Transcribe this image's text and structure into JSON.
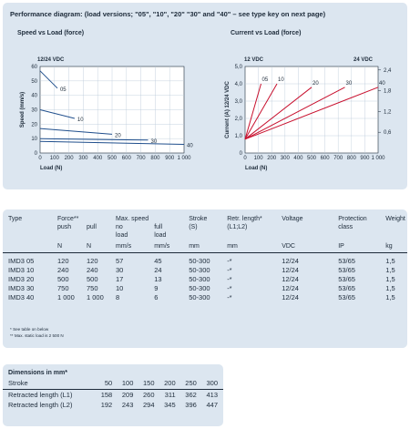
{
  "performance": {
    "heading": "Performance diagram: (load versions; \"05\", \"10\", \"20\" \"30\" and \"40\" – see type key on next page)"
  },
  "chart_data": [
    {
      "type": "line",
      "title": "Speed vs Load (force)",
      "subtitle": "12/24 VDC",
      "xlabel": "Load (N)",
      "ylabel": "Speed (mm/s)",
      "xlim": [
        0,
        1000
      ],
      "ylim": [
        0,
        60
      ],
      "x_ticks": [
        "0",
        "100",
        "200",
        "300",
        "400",
        "500",
        "600",
        "700",
        "800",
        "900",
        "1 000"
      ],
      "y_ticks": [
        "0",
        "10",
        "20",
        "30",
        "40",
        "50",
        "60"
      ],
      "grid": true,
      "series": [
        {
          "name": "05",
          "x": [
            0,
            120
          ],
          "y": [
            57,
            45
          ]
        },
        {
          "name": "10",
          "x": [
            0,
            240
          ],
          "y": [
            30,
            24
          ]
        },
        {
          "name": "20",
          "x": [
            0,
            500
          ],
          "y": [
            17,
            13
          ]
        },
        {
          "name": "30",
          "x": [
            0,
            750
          ],
          "y": [
            10,
            9
          ]
        },
        {
          "name": "40",
          "x": [
            0,
            1000
          ],
          "y": [
            8,
            6
          ]
        }
      ]
    },
    {
      "type": "line",
      "title": "Current vs Load (force)",
      "subtitle_left": "12 VDC",
      "subtitle_right": "24 VDC",
      "xlabel": "Load (N)",
      "ylabel": "Current (A) 12/24 VDC",
      "xlim": [
        0,
        1000
      ],
      "ylim": [
        0,
        5
      ],
      "y2lim": [
        0,
        2.5
      ],
      "x_ticks": [
        "0",
        "100",
        "200",
        "300",
        "400",
        "500",
        "600",
        "700",
        "800",
        "900",
        "1 000"
      ],
      "y_ticks": [
        "0",
        "1,0",
        "2,0",
        "3,0",
        "4,0",
        "5,0"
      ],
      "y2_ticks": [
        "0,6",
        "1,2",
        "1,8",
        "2,4"
      ],
      "grid": true,
      "series_color": "#c8102e",
      "series": [
        {
          "name": "05",
          "x": [
            0,
            120
          ],
          "y": [
            0.8,
            4.0
          ]
        },
        {
          "name": "10",
          "x": [
            0,
            240
          ],
          "y": [
            0.8,
            4.0
          ]
        },
        {
          "name": "20",
          "x": [
            0,
            500
          ],
          "y": [
            0.8,
            3.8
          ]
        },
        {
          "name": "30",
          "x": [
            0,
            750
          ],
          "y": [
            0.8,
            3.8
          ]
        },
        {
          "name": "40",
          "x": [
            0,
            1000
          ],
          "y": [
            0.8,
            3.8
          ]
        }
      ]
    }
  ],
  "specs": {
    "headers": {
      "type": "Type",
      "force": "Force**",
      "push": "push",
      "pull": "pull",
      "max_speed": "Max. speed",
      "no_load": "no",
      "no_load2": "load",
      "full_load": "full",
      "full_load2": "load",
      "stroke": "Stroke",
      "stroke2": "(S)",
      "retr": "Retr. length*",
      "retr2": "(L1;L2)",
      "voltage": "Voltage",
      "protection": "Protection",
      "protection2": "class",
      "weight": "Weight"
    },
    "units": [
      "",
      "N",
      "N",
      "mm/s",
      "mm/s",
      "mm",
      "mm",
      "VDC",
      "IP",
      "kg"
    ],
    "rows": [
      [
        "IMD3 05",
        "120",
        "120",
        "57",
        "45",
        "50-300",
        "-*",
        "12/24",
        "53/65",
        "1,5"
      ],
      [
        "IMD3 10",
        "240",
        "240",
        "30",
        "24",
        "50-300",
        "-*",
        "12/24",
        "53/65",
        "1,5"
      ],
      [
        "IMD3 20",
        "500",
        "500",
        "17",
        "13",
        "50-300",
        "-*",
        "12/24",
        "53/65",
        "1,5"
      ],
      [
        "IMD3 30",
        "750",
        "750",
        "10",
        "9",
        "50-300",
        "-*",
        "12/24",
        "53/65",
        "1,5"
      ],
      [
        "IMD3 40",
        "1 000",
        "1 000",
        "8",
        "6",
        "50-300",
        "-*",
        "12/24",
        "53/65",
        "1,5"
      ]
    ],
    "note1": "* See table on below",
    "note2": "** Max. static load is 2 500 N"
  },
  "dims": {
    "title": "Dimensions in mm*",
    "stroke_label": "Stroke",
    "strokes": [
      "50",
      "100",
      "150",
      "200",
      "250",
      "300"
    ],
    "rows": [
      {
        "label": "Retracted length (L1)",
        "values": [
          "158",
          "209",
          "260",
          "311",
          "362",
          "413"
        ]
      },
      {
        "label": "Retracted length (L2)",
        "values": [
          "192",
          "243",
          "294",
          "345",
          "396",
          "447"
        ]
      }
    ]
  },
  "colors": {
    "panel": "#dce6f0",
    "speed_line": "#1f4e8c",
    "current_line": "#c8102e"
  }
}
